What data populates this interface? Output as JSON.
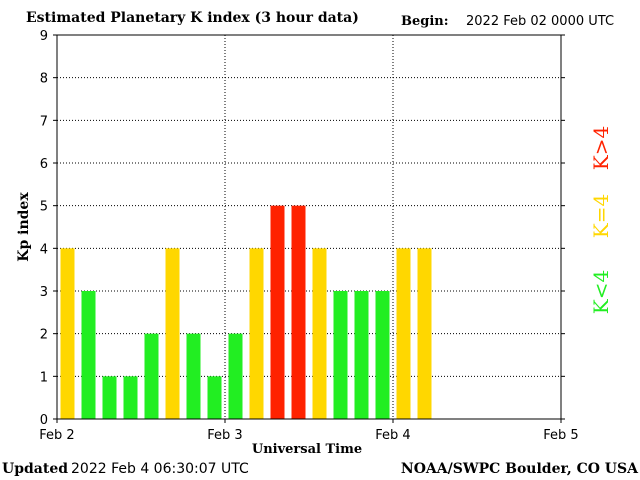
{
  "header": {
    "title": "Estimated Planetary K index (3 hour data)",
    "begin_label": "Begin:",
    "begin_value": "2022 Feb 02 0000 UTC"
  },
  "footer": {
    "updated_label": "Updated",
    "updated_value": "2022 Feb  4 06:30:07 UTC",
    "source": "NOAA/SWPC Boulder, CO USA"
  },
  "legend": {
    "below": "K<4",
    "equal": "K=4",
    "above": "K>4"
  },
  "colors": {
    "below": "#22ee22",
    "equal": "#ffd700",
    "above": "#ff2200",
    "grid": "#000000"
  },
  "chart_data": {
    "type": "bar",
    "title": "Estimated Planetary K index (3 hour data)",
    "xlabel": "Universal Time",
    "ylabel": "Kp index",
    "ylim": [
      0,
      9
    ],
    "yticks": [
      0,
      1,
      2,
      3,
      4,
      5,
      6,
      7,
      8,
      9
    ],
    "x_tick_labels": [
      "Feb 2",
      "Feb 3",
      "Feb 4",
      "Feb 5"
    ],
    "grid": true,
    "interval_hours": 3,
    "start": "2022 Feb 02 0000 UTC",
    "values": [
      4,
      3,
      1,
      1,
      2,
      4,
      2,
      1,
      2,
      4,
      5,
      5,
      4,
      3,
      3,
      3,
      4,
      4
    ]
  }
}
